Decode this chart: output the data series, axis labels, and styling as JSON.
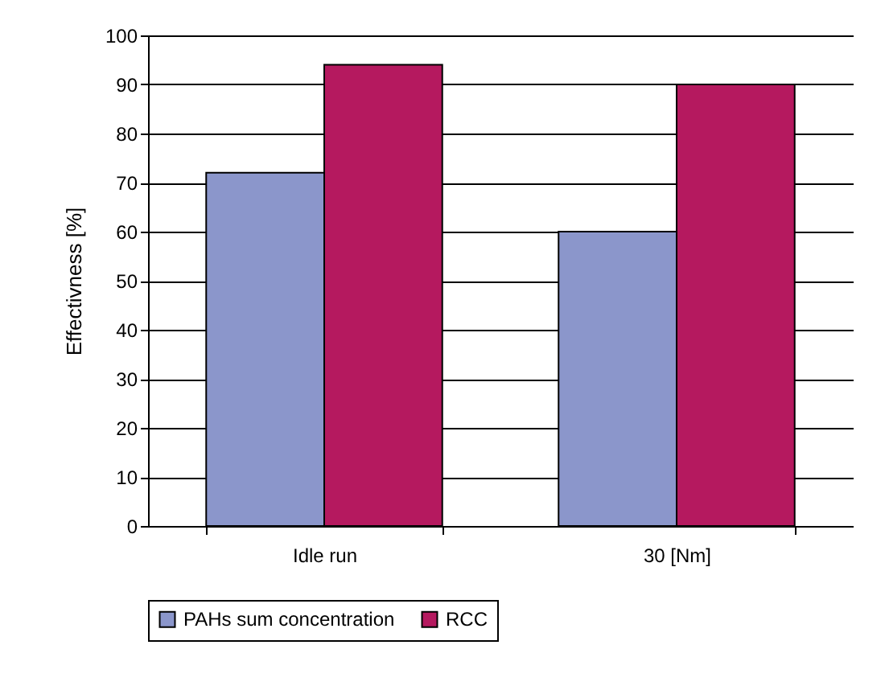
{
  "chart_data": {
    "type": "bar",
    "ylabel": "Effectivness [%]",
    "categories": [
      "Idle run",
      "30 [Nm]"
    ],
    "series": [
      {
        "name": "PAHs sum concentration",
        "color": "#8b96cb",
        "values": [
          72,
          60
        ]
      },
      {
        "name": "RCC",
        "color": "#b5195f",
        "values": [
          94,
          90
        ]
      }
    ],
    "ylim": [
      0,
      100
    ],
    "yticks": [
      0,
      10,
      20,
      30,
      40,
      50,
      60,
      70,
      80,
      90,
      100
    ],
    "grid": "y",
    "legend": "bottom"
  }
}
